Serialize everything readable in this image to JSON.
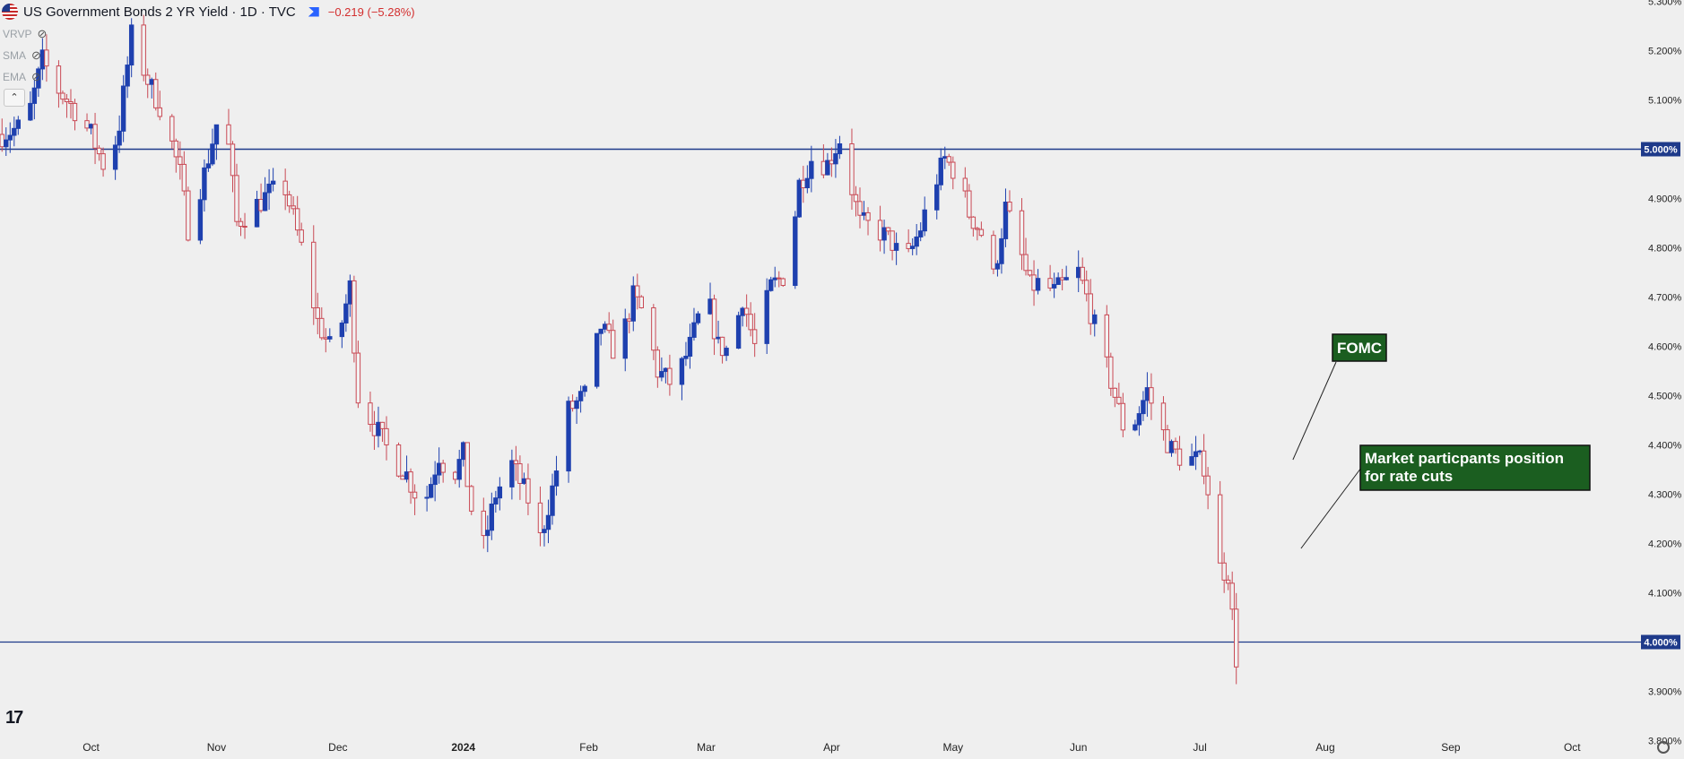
{
  "header": {
    "title": "US Government Bonds 2 YR Yield · 1D · TVC",
    "change": "−0.219 (−5.28%)"
  },
  "indicators": [
    {
      "label": "VRVP",
      "icon": "eye-off-icon"
    },
    {
      "label": "SMA",
      "icon": "eye-off-icon"
    },
    {
      "label": "EMA",
      "icon": "eye-off-icon"
    }
  ],
  "collapse_label": "⌃",
  "logo_text": "17",
  "colors": {
    "background": "#efefef",
    "up_candle": "#1e40af",
    "down_candle": "#c94a55",
    "level_line": "#1e3a8a",
    "annotation_bg": "#1b5e20"
  },
  "chart_data": {
    "type": "candlestick",
    "instrument": "US Government Bonds 2 YR Yield",
    "interval": "1D",
    "ylim": [
      3.77,
      5.31
    ],
    "y_ticks": [
      "5.300%",
      "5.200%",
      "5.100%",
      "4.900%",
      "4.800%",
      "4.700%",
      "4.600%",
      "4.500%",
      "4.400%",
      "4.300%",
      "4.200%",
      "4.100%",
      "3.900%",
      "3.800%"
    ],
    "y_tick_values": [
      5.3,
      5.2,
      5.1,
      4.9,
      4.8,
      4.7,
      4.6,
      4.5,
      4.4,
      4.3,
      4.2,
      4.1,
      3.9,
      3.8
    ],
    "x_labels": [
      "Oct",
      "Nov",
      "Dec",
      "2024",
      "Feb",
      "Mar",
      "Apr",
      "May",
      "Jun",
      "Jul",
      "Aug",
      "Sep",
      "Oct"
    ],
    "x_label_days": [
      22,
      53,
      83,
      114,
      145,
      174,
      205,
      235,
      266,
      296,
      327,
      358,
      388
    ],
    "day_range": [
      -0.5,
      405
    ],
    "levels": [
      {
        "value": 5.0,
        "label": "5.000%"
      },
      {
        "value": 4.0,
        "label": "4.000%"
      }
    ],
    "annotations": [
      {
        "text": "FOMC",
        "anchor_day": 319,
        "anchor_value": 4.37
      },
      {
        "text": "Market particpants position for rate cuts",
        "anchor_day": 321,
        "anchor_value": 4.19
      }
    ],
    "anchors": [
      [
        0,
        5.03
      ],
      [
        6,
        5.05
      ],
      [
        10,
        5.18
      ],
      [
        14,
        5.12
      ],
      [
        18,
        5.08
      ],
      [
        22,
        5.03
      ],
      [
        26,
        4.95
      ],
      [
        29,
        5.05
      ],
      [
        32,
        5.23
      ],
      [
        36,
        5.14
      ],
      [
        40,
        5.07
      ],
      [
        44,
        4.95
      ],
      [
        46,
        4.84
      ],
      [
        50,
        4.95
      ],
      [
        53,
        5.05
      ],
      [
        55,
        5.08
      ],
      [
        58,
        4.85
      ],
      [
        62,
        4.88
      ],
      [
        66,
        4.91
      ],
      [
        70,
        4.92
      ],
      [
        74,
        4.8
      ],
      [
        78,
        4.65
      ],
      [
        82,
        4.58
      ],
      [
        86,
        4.72
      ],
      [
        88,
        4.5
      ],
      [
        92,
        4.44
      ],
      [
        96,
        4.38
      ],
      [
        100,
        4.34
      ],
      [
        104,
        4.27
      ],
      [
        108,
        4.38
      ],
      [
        111,
        4.33
      ],
      [
        114,
        4.38
      ],
      [
        118,
        4.16
      ],
      [
        122,
        4.3
      ],
      [
        126,
        4.36
      ],
      [
        130,
        4.29
      ],
      [
        133,
        4.21
      ],
      [
        136,
        4.31
      ],
      [
        140,
        4.47
      ],
      [
        144,
        4.5
      ],
      [
        148,
        4.64
      ],
      [
        152,
        4.58
      ],
      [
        156,
        4.7
      ],
      [
        159,
        4.66
      ],
      [
        162,
        4.55
      ],
      [
        166,
        4.52
      ],
      [
        170,
        4.6
      ],
      [
        174,
        4.71
      ],
      [
        177,
        4.6
      ],
      [
        180,
        4.59
      ],
      [
        183,
        4.7
      ],
      [
        186,
        4.6
      ],
      [
        190,
        4.72
      ],
      [
        194,
        4.75
      ],
      [
        197,
        4.93
      ],
      [
        200,
        4.98
      ],
      [
        204,
        4.97
      ],
      [
        207,
        5.02
      ],
      [
        210,
        4.92
      ],
      [
        212,
        4.85
      ],
      [
        216,
        4.84
      ],
      [
        220,
        4.81
      ],
      [
        223,
        4.76
      ],
      [
        227,
        4.84
      ],
      [
        230,
        4.92
      ],
      [
        233,
        4.98
      ],
      [
        236,
        4.95
      ],
      [
        239,
        4.87
      ],
      [
        242,
        4.83
      ],
      [
        245,
        4.74
      ],
      [
        248,
        4.88
      ],
      [
        251,
        4.81
      ],
      [
        254,
        4.72
      ],
      [
        257,
        4.73
      ],
      [
        260,
        4.71
      ],
      [
        263,
        4.73
      ],
      [
        266,
        4.75
      ],
      [
        268,
        4.7
      ],
      [
        271,
        4.61
      ],
      [
        274,
        4.53
      ],
      [
        277,
        4.44
      ],
      [
        280,
        4.45
      ],
      [
        283,
        4.51
      ],
      [
        286,
        4.44
      ],
      [
        289,
        4.39
      ],
      [
        292,
        4.37
      ],
      [
        295,
        4.37
      ],
      [
        297,
        4.36
      ],
      [
        299,
        4.26
      ],
      [
        301,
        4.15
      ],
      [
        303,
        4.14
      ],
      [
        306,
        3.88
      ]
    ]
  }
}
